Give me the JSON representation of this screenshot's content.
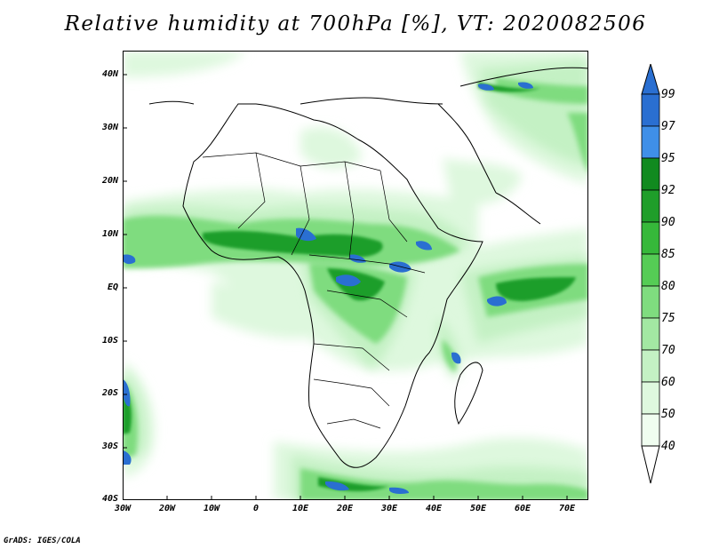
{
  "title": "Relative humidity at 700hPa [%], VT: 2020082506",
  "credit": "GrADS: IGES/COLA",
  "map": {
    "lon_ticks": [
      "30W",
      "20W",
      "10W",
      "0",
      "10E",
      "20E",
      "30E",
      "40E",
      "50E",
      "60E",
      "70E"
    ],
    "lat_ticks": [
      "40N",
      "30N",
      "20N",
      "10N",
      "EQ",
      "10S",
      "20S",
      "30S",
      "40S"
    ]
  },
  "colorbar": {
    "labels": [
      "99",
      "97",
      "95",
      "92",
      "90",
      "85",
      "80",
      "75",
      "70",
      "60",
      "50",
      "40"
    ],
    "colors": {
      "c99": "#2a6fd1",
      "c97": "#3f8fe8",
      "c95": "#118a1f",
      "c92": "#1f9e2a",
      "c90": "#36b83a",
      "c85": "#55cc55",
      "c80": "#7fdc7f",
      "c75": "#a3e8a3",
      "c70": "#c4f1c4",
      "c60": "#def8de",
      "c50": "#f0fdf0",
      "c40": "#ffffff"
    }
  }
}
